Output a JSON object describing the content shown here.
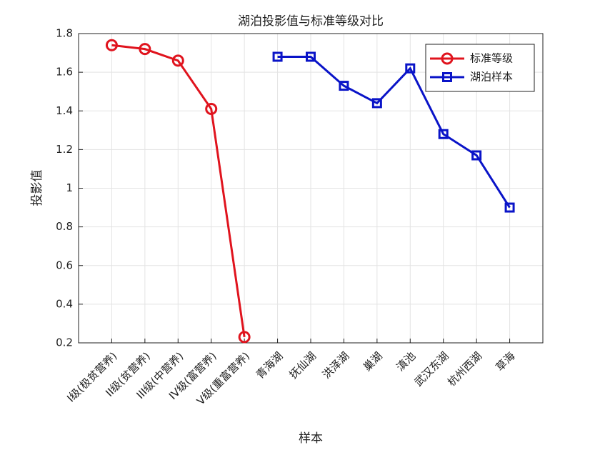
{
  "chart_data": {
    "type": "line",
    "title": "湖泊投影值与标准等级对比",
    "xlabel": "样本",
    "ylabel": "投影值",
    "categories": [
      "I级(极贫营养)",
      "II级(贫营养)",
      "III级(中营养)",
      "IV级(富营养)",
      "V级(重富营养)",
      "青海湖",
      "抚仙湖",
      "洪泽湖",
      "巢湖",
      "滇池",
      "武汉东湖",
      "杭州西湖",
      "草海"
    ],
    "series": [
      {
        "name": "标准等级",
        "color": "#e0141e",
        "marker": "circle",
        "values": [
          1.74,
          1.72,
          1.66,
          1.41,
          0.23,
          null,
          null,
          null,
          null,
          null,
          null,
          null,
          null
        ]
      },
      {
        "name": "湖泊样本",
        "color": "#0a14c8",
        "marker": "square",
        "values": [
          null,
          null,
          null,
          null,
          null,
          1.68,
          1.68,
          1.53,
          1.44,
          1.62,
          1.28,
          1.17,
          0.9
        ]
      }
    ],
    "ylim": [
      0.2,
      1.8
    ],
    "yticks": [
      0.2,
      0.4,
      0.6,
      0.8,
      1,
      1.2,
      1.4,
      1.6,
      1.8
    ],
    "grid": true,
    "legend": "upper right"
  }
}
